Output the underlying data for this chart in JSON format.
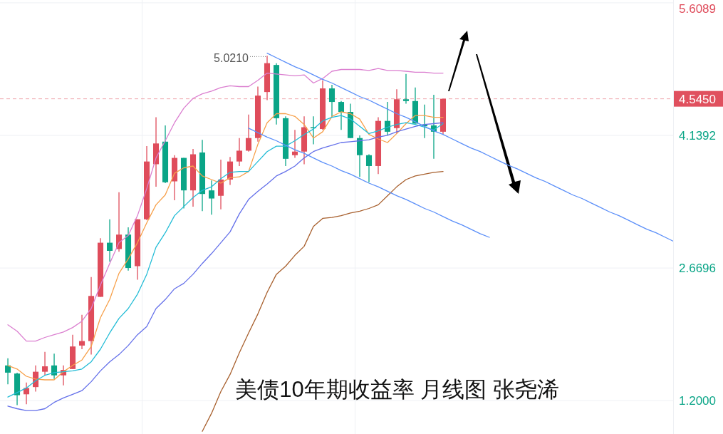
{
  "chart_data": {
    "type": "candlestick",
    "categories": [
      null,
      null,
      null,
      null,
      null,
      null,
      null,
      null,
      null,
      null,
      null,
      null,
      null,
      null,
      null,
      null,
      null,
      null,
      null,
      null,
      null,
      null,
      null,
      null,
      null,
      null,
      null,
      null,
      null,
      null,
      null,
      null,
      null,
      null,
      null,
      null,
      null,
      null,
      null,
      null,
      null,
      null,
      null,
      null,
      null,
      null,
      null,
      null,
      null,
      null,
      null,
      null,
      null,
      null,
      null,
      null,
      null,
      null,
      null,
      null,
      null,
      null,
      null,
      null,
      null,
      null,
      null,
      null,
      null,
      null,
      null,
      null,
      null
    ],
    "ohlc": [
      [
        1.59,
        1.67,
        1.38,
        1.51
      ],
      [
        1.5,
        1.51,
        1.15,
        1.26
      ],
      [
        1.27,
        1.4,
        1.16,
        1.34
      ],
      [
        1.35,
        1.59,
        1.3,
        1.52
      ],
      [
        1.52,
        1.74,
        1.48,
        1.58
      ],
      [
        1.59,
        1.72,
        1.44,
        1.48
      ],
      [
        1.48,
        1.59,
        1.37,
        1.54
      ],
      [
        1.55,
        1.93,
        1.55,
        1.8
      ],
      [
        1.81,
        2.15,
        1.77,
        1.86
      ],
      [
        1.86,
        2.57,
        1.71,
        2.36
      ],
      [
        2.35,
        3.0,
        2.35,
        2.95
      ],
      [
        2.95,
        3.21,
        2.74,
        2.86
      ],
      [
        2.88,
        3.51,
        2.85,
        3.04
      ],
      [
        3.04,
        3.12,
        2.64,
        2.67
      ],
      [
        2.69,
        3.21,
        2.54,
        3.21
      ],
      [
        3.21,
        4.02,
        3.2,
        3.85
      ],
      [
        3.82,
        4.34,
        3.57,
        4.05
      ],
      [
        4.07,
        4.25,
        3.61,
        3.62
      ],
      [
        3.63,
        3.92,
        3.42,
        3.89
      ],
      [
        3.89,
        3.89,
        3.33,
        3.53
      ],
      [
        3.53,
        3.99,
        3.35,
        3.93
      ],
      [
        3.95,
        4.09,
        3.3,
        3.49
      ],
      [
        3.53,
        3.64,
        3.26,
        3.44
      ],
      [
        3.47,
        3.87,
        3.32,
        3.65
      ],
      [
        3.65,
        3.9,
        3.59,
        3.85
      ],
      [
        3.85,
        4.11,
        3.8,
        3.97
      ],
      [
        3.97,
        4.37,
        3.96,
        4.11
      ],
      [
        4.11,
        4.68,
        4.07,
        4.58
      ],
      [
        4.62,
        5.021,
        4.53,
        4.94
      ],
      [
        4.92,
        4.94,
        4.26,
        4.33
      ],
      [
        4.33,
        4.35,
        3.8,
        3.88
      ],
      [
        3.92,
        4.2,
        3.89,
        3.96
      ],
      [
        3.96,
        4.35,
        3.82,
        4.23
      ],
      [
        4.23,
        4.35,
        4.04,
        4.22
      ],
      [
        4.21,
        4.75,
        4.2,
        4.66
      ],
      [
        4.66,
        4.7,
        4.34,
        4.51
      ],
      [
        4.51,
        4.52,
        4.2,
        4.4
      ],
      [
        4.4,
        4.49,
        4.11,
        4.11
      ],
      [
        4.11,
        4.14,
        3.68,
        3.92
      ],
      [
        3.92,
        3.93,
        3.62,
        3.8
      ],
      [
        3.8,
        4.34,
        3.71,
        4.3
      ],
      [
        4.3,
        4.51,
        4.14,
        4.18
      ],
      [
        4.22,
        4.65,
        4.16,
        4.54
      ],
      [
        4.54,
        4.82,
        4.49,
        4.52
      ],
      [
        4.52,
        4.67,
        4.27,
        4.27
      ],
      [
        4.26,
        4.48,
        4.11,
        4.24
      ],
      [
        4.25,
        4.59,
        3.88,
        4.18
      ],
      [
        4.18,
        4.545,
        4.15,
        4.545
      ],
      null,
      null,
      null,
      null,
      null,
      null,
      null,
      null,
      null,
      null,
      null,
      null,
      null,
      null,
      null,
      null,
      null,
      null,
      null,
      null,
      null,
      null,
      null,
      null,
      null
    ],
    "series": [
      {
        "type": "line",
        "color": "#db7fd0",
        "values": [
          2.04,
          1.97,
          1.86,
          1.86,
          1.9,
          1.93,
          1.96,
          2.01,
          2.08,
          2.22,
          2.48,
          2.72,
          2.95,
          3.03,
          3.25,
          3.55,
          3.89,
          4.08,
          4.28,
          4.44,
          4.55,
          4.6,
          4.63,
          4.67,
          4.69,
          4.68,
          4.68,
          4.75,
          4.83,
          4.82,
          4.81,
          4.8,
          4.81,
          4.72,
          4.77,
          4.85,
          4.87,
          4.87,
          4.87,
          4.86,
          4.88,
          4.86,
          4.86,
          4.85,
          4.84,
          4.84,
          4.83,
          4.83,
          null,
          null,
          null,
          null,
          null,
          null,
          null,
          null,
          null,
          null,
          null,
          null,
          null,
          null,
          null,
          null,
          null,
          null,
          null,
          null,
          null,
          null,
          null,
          null,
          null
        ]
      },
      {
        "type": "line",
        "color": "#f7a04a",
        "values": [
          1.59,
          1.55,
          1.47,
          1.44,
          1.43,
          1.43,
          1.52,
          1.59,
          1.65,
          1.8,
          2.12,
          2.32,
          2.61,
          2.77,
          2.95,
          3.17,
          3.37,
          3.48,
          3.72,
          3.78,
          3.8,
          3.69,
          3.65,
          3.61,
          3.67,
          3.68,
          3.74,
          4.04,
          4.28,
          4.38,
          4.38,
          4.35,
          4.26,
          4.11,
          4.18,
          4.35,
          4.4,
          4.38,
          4.32,
          4.15,
          4.1,
          4.06,
          4.16,
          4.27,
          4.36,
          4.36,
          4.34,
          4.34,
          null,
          null,
          null,
          null,
          null,
          null,
          null,
          null,
          null,
          null,
          null,
          null,
          null,
          null,
          null,
          null,
          null,
          null,
          null,
          null,
          null,
          null,
          null,
          null,
          null
        ]
      },
      {
        "type": "line",
        "color": "#22bcd6",
        "values": [
          1.24,
          1.29,
          1.34,
          1.42,
          1.48,
          1.51,
          1.52,
          1.53,
          1.55,
          1.63,
          1.77,
          1.95,
          2.11,
          2.22,
          2.38,
          2.6,
          2.9,
          3.06,
          3.25,
          3.35,
          3.45,
          3.53,
          3.57,
          3.66,
          3.73,
          3.74,
          3.74,
          3.85,
          3.96,
          4.02,
          4.02,
          4.08,
          4.15,
          4.21,
          4.3,
          4.34,
          4.36,
          4.32,
          4.24,
          4.16,
          4.19,
          4.23,
          4.26,
          4.28,
          4.26,
          4.23,
          4.2,
          4.27,
          null,
          null,
          null,
          null,
          null,
          null,
          null,
          null,
          null,
          null,
          null,
          null,
          null,
          null,
          null,
          null,
          null,
          null,
          null,
          null,
          null,
          null,
          null,
          null,
          null
        ]
      },
      {
        "type": "line",
        "color": "#6470ea",
        "values": [
          1.14,
          1.11,
          1.09,
          1.09,
          1.11,
          1.18,
          1.23,
          1.27,
          1.31,
          1.41,
          1.53,
          1.63,
          1.71,
          1.81,
          1.93,
          2.02,
          2.22,
          2.32,
          2.44,
          2.5,
          2.6,
          2.72,
          2.83,
          2.95,
          3.07,
          3.27,
          3.43,
          3.52,
          3.6,
          3.69,
          3.74,
          3.8,
          3.89,
          3.96,
          4.0,
          4.03,
          4.06,
          4.07,
          4.08,
          4.09,
          4.12,
          4.14,
          4.18,
          4.21,
          4.24,
          4.26,
          4.27,
          4.28,
          null,
          null,
          null,
          null,
          null,
          null,
          null,
          null,
          null,
          null,
          null,
          null,
          null,
          null,
          null,
          null,
          null,
          null,
          null,
          null,
          null,
          null,
          null,
          null,
          null
        ]
      },
      {
        "type": "line",
        "color": "#a8602e",
        "values": [
          null,
          null,
          null,
          null,
          null,
          null,
          null,
          null,
          null,
          null,
          null,
          null,
          null,
          null,
          null,
          null,
          null,
          null,
          null,
          null,
          null,
          0.86,
          1.06,
          1.3,
          1.49,
          1.73,
          1.95,
          2.16,
          2.4,
          2.6,
          2.69,
          2.81,
          2.91,
          3.13,
          3.22,
          3.23,
          3.25,
          3.28,
          3.3,
          3.33,
          3.37,
          3.47,
          3.57,
          3.65,
          3.69,
          3.71,
          3.73,
          3.74,
          null,
          null,
          null,
          null,
          null,
          null,
          null,
          null,
          null,
          null,
          null,
          null,
          null,
          null,
          null,
          null,
          null,
          null,
          null,
          null,
          null,
          null,
          null,
          null,
          null
        ]
      },
      {
        "type": "line",
        "color": "#5b8ff9",
        "values": [
          null,
          null,
          null,
          null,
          null,
          null,
          null,
          null,
          null,
          null,
          null,
          null,
          null,
          null,
          null,
          null,
          null,
          null,
          null,
          null,
          null,
          null,
          null,
          null,
          null,
          null,
          null,
          null,
          5.05,
          5.0,
          4.95,
          4.9,
          4.86,
          4.81,
          4.76,
          4.72,
          4.67,
          4.62,
          4.57,
          4.53,
          4.48,
          4.43,
          4.38,
          4.34,
          4.29,
          4.24,
          4.19,
          4.15,
          4.1,
          4.05,
          4.0,
          3.96,
          3.91,
          3.86,
          3.81,
          3.77,
          3.72,
          3.67,
          3.63,
          3.58,
          3.53,
          3.48,
          3.44,
          3.39,
          3.34,
          3.29,
          3.25,
          3.2,
          3.15,
          3.1,
          3.06,
          3.01,
          2.96
        ]
      },
      {
        "type": "line",
        "color": "#5b8ff9",
        "values": [
          null,
          null,
          null,
          null,
          null,
          null,
          null,
          null,
          null,
          null,
          null,
          null,
          null,
          null,
          null,
          null,
          null,
          null,
          null,
          null,
          null,
          null,
          null,
          null,
          null,
          null,
          4.22,
          4.17,
          4.12,
          4.08,
          4.03,
          3.98,
          3.94,
          3.89,
          3.84,
          3.8,
          3.75,
          3.71,
          3.66,
          3.61,
          3.57,
          3.52,
          3.47,
          3.43,
          3.38,
          3.33,
          3.29,
          3.24,
          3.19,
          3.15,
          3.1,
          3.05,
          3.01,
          null,
          null,
          null,
          null,
          null,
          null,
          null,
          null,
          null,
          null,
          null,
          null,
          null,
          null,
          null,
          null,
          null,
          null,
          null,
          null
        ]
      }
    ],
    "ylim": [
      0.83,
      5.64
    ],
    "yticks": [
      {
        "value": 1.2,
        "label": "1.2000"
      },
      {
        "value": 2.6696,
        "label": "2.6696"
      },
      {
        "value": 4.1392,
        "label": "4.1392"
      },
      {
        "value": 5.6089,
        "label": "5.6089"
      }
    ],
    "grid": true,
    "ref_lines": [
      {
        "axis": "y",
        "value": 4.545,
        "label": "4.5450",
        "color": "#e0505e",
        "line_style": "dashed"
      }
    ],
    "annotations": [
      "5.0210",
      "美债10年期收益率 月线图 张尧浠"
    ]
  }
}
